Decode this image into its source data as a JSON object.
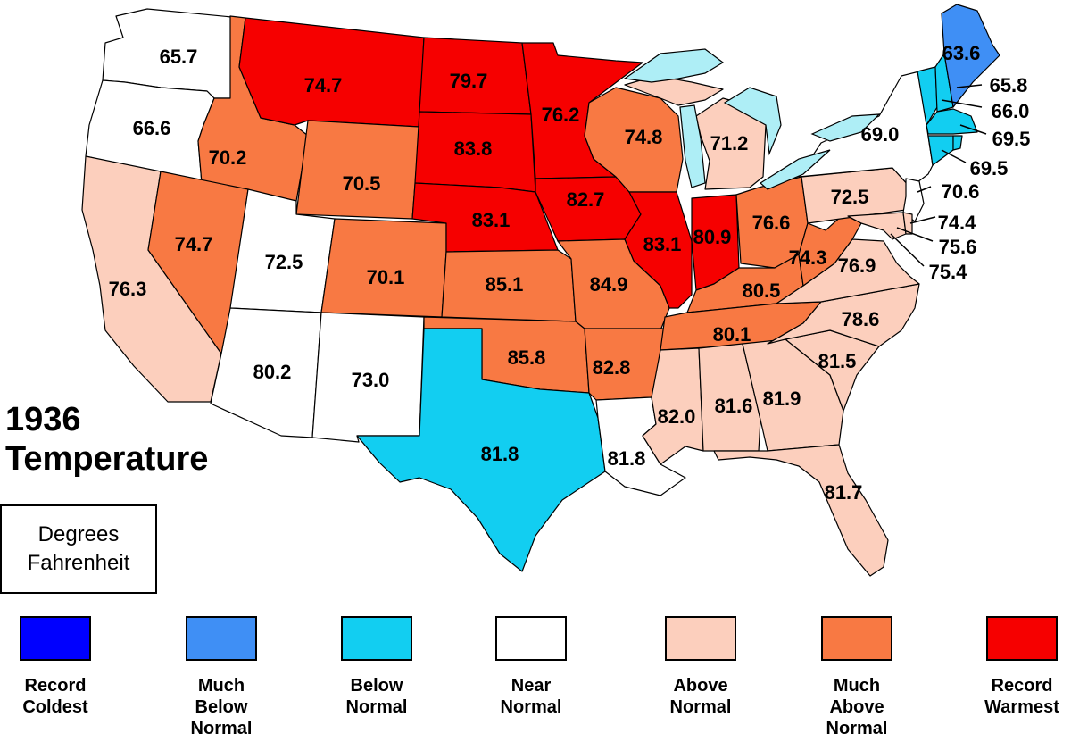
{
  "title": {
    "year": "1936",
    "subtitle": "Temperature"
  },
  "units": {
    "line1": "Degrees",
    "line2": "Fahrenheit"
  },
  "categories": [
    {
      "id": "record_coldest",
      "color": "#0000ff",
      "label": [
        "Record",
        "Coldest"
      ]
    },
    {
      "id": "much_below",
      "color": "#3f8ff5",
      "label": [
        "Much",
        "Below",
        "Normal"
      ]
    },
    {
      "id": "below",
      "color": "#12cef1",
      "label": [
        "Below",
        "Normal"
      ]
    },
    {
      "id": "near",
      "color": "#ffffff",
      "label": [
        "Near",
        "Normal"
      ]
    },
    {
      "id": "above",
      "color": "#fccfbd",
      "label": [
        "Above",
        "Normal"
      ]
    },
    {
      "id": "much_above",
      "color": "#f87943",
      "label": [
        "Much",
        "Above",
        "Normal"
      ]
    },
    {
      "id": "record_warmest",
      "color": "#f60000",
      "label": [
        "Record",
        "Warmest"
      ]
    }
  ],
  "states": [
    {
      "state": "WA",
      "value": "65.7",
      "category": "near"
    },
    {
      "state": "OR",
      "value": "66.6",
      "category": "near"
    },
    {
      "state": "CA",
      "value": "76.3",
      "category": "above"
    },
    {
      "state": "ID",
      "value": "70.2",
      "category": "much_above"
    },
    {
      "state": "NV",
      "value": "74.7",
      "category": "much_above"
    },
    {
      "state": "MT",
      "value": "74.7",
      "category": "record_warmest"
    },
    {
      "state": "WY",
      "value": "70.5",
      "category": "much_above"
    },
    {
      "state": "UT",
      "value": "72.5",
      "category": "near"
    },
    {
      "state": "AZ",
      "value": "80.2",
      "category": "near"
    },
    {
      "state": "CO",
      "value": "70.1",
      "category": "much_above"
    },
    {
      "state": "NM",
      "value": "73.0",
      "category": "near"
    },
    {
      "state": "ND",
      "value": "79.7",
      "category": "record_warmest"
    },
    {
      "state": "SD",
      "value": "83.8",
      "category": "record_warmest"
    },
    {
      "state": "NE",
      "value": "83.1",
      "category": "record_warmest"
    },
    {
      "state": "KS",
      "value": "85.1",
      "category": "much_above"
    },
    {
      "state": "OK",
      "value": "85.8",
      "category": "much_above"
    },
    {
      "state": "TX",
      "value": "81.8",
      "category": "below"
    },
    {
      "state": "MN",
      "value": "76.2",
      "category": "record_warmest"
    },
    {
      "state": "IA",
      "value": "82.7",
      "category": "record_warmest"
    },
    {
      "state": "MO",
      "value": "84.9",
      "category": "much_above"
    },
    {
      "state": "AR",
      "value": "82.8",
      "category": "much_above"
    },
    {
      "state": "LA",
      "value": "81.8",
      "category": "near"
    },
    {
      "state": "WI",
      "value": "74.8",
      "category": "much_above"
    },
    {
      "state": "IL",
      "value": "83.1",
      "category": "record_warmest"
    },
    {
      "state": "MI",
      "value": "71.2",
      "category": "above"
    },
    {
      "state": "IN",
      "value": "80.9",
      "category": "record_warmest"
    },
    {
      "state": "OH",
      "value": "76.6",
      "category": "much_above"
    },
    {
      "state": "KY",
      "value": "80.5",
      "category": "much_above"
    },
    {
      "state": "TN",
      "value": "80.1",
      "category": "much_above"
    },
    {
      "state": "MS",
      "value": "82.0",
      "category": "above"
    },
    {
      "state": "AL",
      "value": "81.6",
      "category": "above"
    },
    {
      "state": "GA",
      "value": "81.9",
      "category": "above"
    },
    {
      "state": "FL",
      "value": "81.7",
      "category": "above"
    },
    {
      "state": "SC",
      "value": "81.5",
      "category": "above"
    },
    {
      "state": "NC",
      "value": "78.6",
      "category": "above"
    },
    {
      "state": "VA",
      "value": "76.9",
      "category": "above"
    },
    {
      "state": "WV",
      "value": "74.3",
      "category": "much_above"
    },
    {
      "state": "PA",
      "value": "72.5",
      "category": "above"
    },
    {
      "state": "NY",
      "value": "69.0",
      "category": "near"
    },
    {
      "state": "ME",
      "value": "63.6",
      "category": "much_below"
    },
    {
      "state": "NH",
      "value": "65.8",
      "category": "below"
    },
    {
      "state": "VT",
      "value": "66.0",
      "category": "below"
    },
    {
      "state": "MA",
      "value": "69.5",
      "category": "below"
    },
    {
      "state": "CT",
      "value": "69.5",
      "category": "below"
    },
    {
      "state": "NJ",
      "value": "70.6",
      "category": "near"
    },
    {
      "state": "DE",
      "value": "74.4",
      "category": "above"
    },
    {
      "state": "MD",
      "value": "75.6",
      "category": "above"
    },
    {
      "state": "DC",
      "value": "75.4",
      "category": "above"
    }
  ]
}
